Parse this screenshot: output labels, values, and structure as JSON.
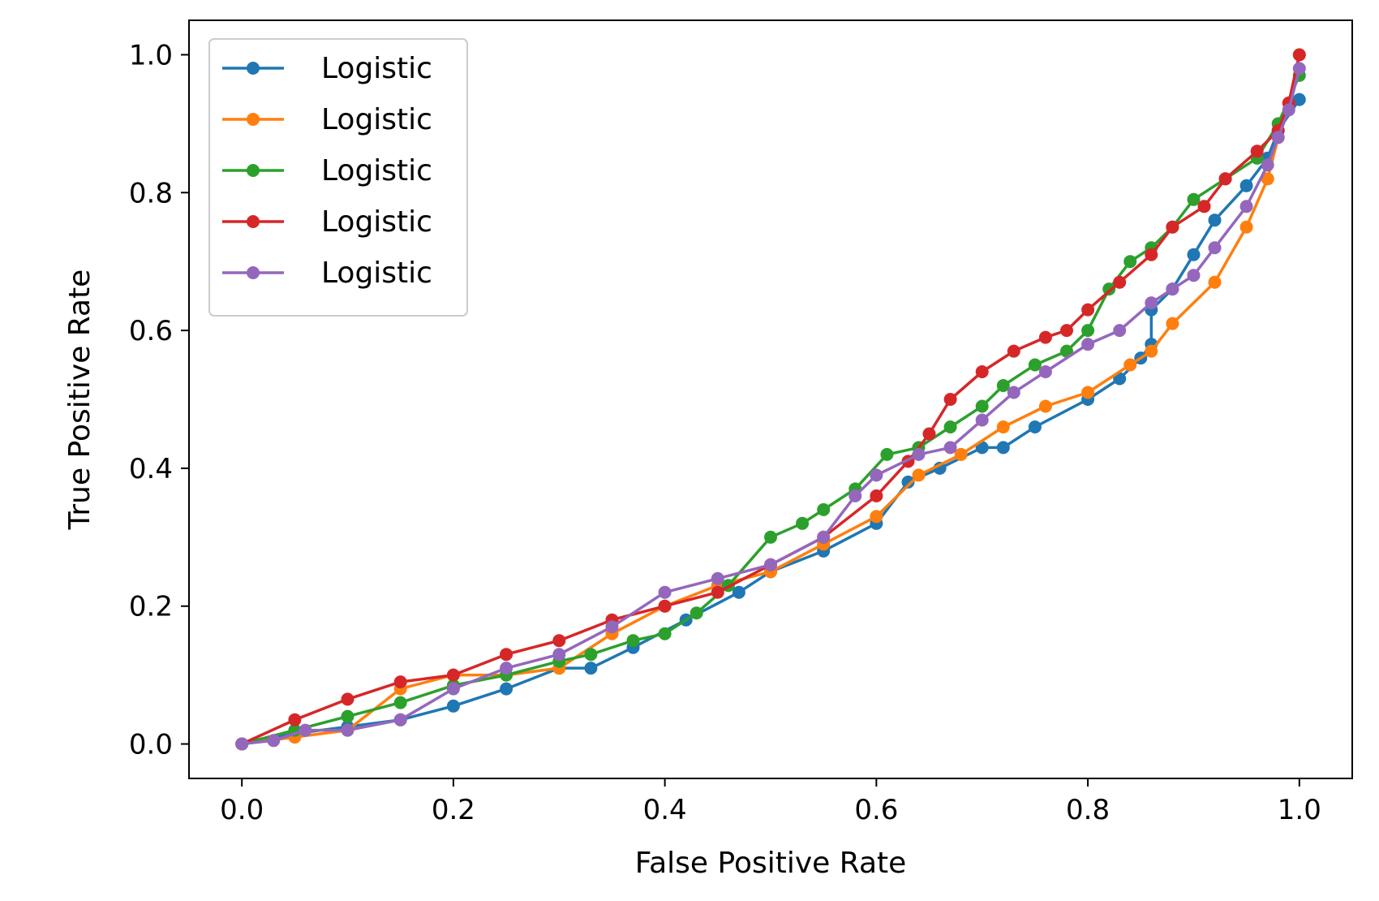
{
  "chart_data": {
    "type": "line",
    "title": "",
    "xlabel": "False Positive Rate",
    "ylabel": "True Positive Rate",
    "xlim": [
      -0.05,
      1.05
    ],
    "ylim": [
      -0.05,
      1.05
    ],
    "xticks": [
      "0.0",
      "0.2",
      "0.4",
      "0.6",
      "0.8",
      "1.0"
    ],
    "yticks": [
      "0.0",
      "0.2",
      "0.4",
      "0.6",
      "0.8",
      "1.0"
    ],
    "grid": false,
    "legend_position": "top-left",
    "markers": true,
    "series": [
      {
        "name": "Logistic",
        "color": "#1f77b4",
        "points": [
          [
            0,
            0
          ],
          [
            0.05,
            0.015
          ],
          [
            0.1,
            0.025
          ],
          [
            0.15,
            0.035
          ],
          [
            0.2,
            0.055
          ],
          [
            0.25,
            0.08
          ],
          [
            0.3,
            0.11
          ],
          [
            0.33,
            0.11
          ],
          [
            0.37,
            0.14
          ],
          [
            0.42,
            0.18
          ],
          [
            0.47,
            0.22
          ],
          [
            0.5,
            0.25
          ],
          [
            0.55,
            0.28
          ],
          [
            0.6,
            0.32
          ],
          [
            0.63,
            0.38
          ],
          [
            0.66,
            0.4
          ],
          [
            0.7,
            0.43
          ],
          [
            0.72,
            0.43
          ],
          [
            0.75,
            0.46
          ],
          [
            0.8,
            0.5
          ],
          [
            0.83,
            0.53
          ],
          [
            0.85,
            0.56
          ],
          [
            0.86,
            0.58
          ],
          [
            0.86,
            0.63
          ],
          [
            0.88,
            0.66
          ],
          [
            0.9,
            0.71
          ],
          [
            0.92,
            0.76
          ],
          [
            0.95,
            0.81
          ],
          [
            0.97,
            0.85
          ],
          [
            0.98,
            0.89
          ],
          [
            1.0,
            0.935
          ]
        ]
      },
      {
        "name": "Logistic",
        "color": "#ff7f0e",
        "points": [
          [
            0,
            0
          ],
          [
            0.05,
            0.01
          ],
          [
            0.1,
            0.02
          ],
          [
            0.15,
            0.08
          ],
          [
            0.2,
            0.1
          ],
          [
            0.25,
            0.1
          ],
          [
            0.3,
            0.11
          ],
          [
            0.35,
            0.16
          ],
          [
            0.4,
            0.2
          ],
          [
            0.45,
            0.23
          ],
          [
            0.5,
            0.25
          ],
          [
            0.55,
            0.29
          ],
          [
            0.6,
            0.33
          ],
          [
            0.64,
            0.39
          ],
          [
            0.68,
            0.42
          ],
          [
            0.72,
            0.46
          ],
          [
            0.76,
            0.49
          ],
          [
            0.8,
            0.51
          ],
          [
            0.84,
            0.55
          ],
          [
            0.86,
            0.57
          ],
          [
            0.88,
            0.61
          ],
          [
            0.92,
            0.67
          ],
          [
            0.95,
            0.75
          ],
          [
            0.97,
            0.82
          ],
          [
            0.98,
            0.88
          ],
          [
            0.99,
            0.93
          ],
          [
            1.0,
            1.0
          ]
        ]
      },
      {
        "name": "Logistic",
        "color": "#2ca02c",
        "points": [
          [
            0,
            0
          ],
          [
            0.05,
            0.02
          ],
          [
            0.1,
            0.04
          ],
          [
            0.15,
            0.06
          ],
          [
            0.2,
            0.085
          ],
          [
            0.25,
            0.1
          ],
          [
            0.3,
            0.12
          ],
          [
            0.33,
            0.13
          ],
          [
            0.37,
            0.15
          ],
          [
            0.4,
            0.16
          ],
          [
            0.43,
            0.19
          ],
          [
            0.46,
            0.23
          ],
          [
            0.5,
            0.3
          ],
          [
            0.53,
            0.32
          ],
          [
            0.55,
            0.34
          ],
          [
            0.58,
            0.37
          ],
          [
            0.61,
            0.42
          ],
          [
            0.64,
            0.43
          ],
          [
            0.67,
            0.46
          ],
          [
            0.7,
            0.49
          ],
          [
            0.72,
            0.52
          ],
          [
            0.75,
            0.55
          ],
          [
            0.78,
            0.57
          ],
          [
            0.8,
            0.6
          ],
          [
            0.82,
            0.66
          ],
          [
            0.84,
            0.7
          ],
          [
            0.86,
            0.72
          ],
          [
            0.88,
            0.75
          ],
          [
            0.9,
            0.79
          ],
          [
            0.93,
            0.82
          ],
          [
            0.96,
            0.85
          ],
          [
            0.98,
            0.9
          ],
          [
            1.0,
            0.97
          ]
        ]
      },
      {
        "name": "Logistic",
        "color": "#d62728",
        "points": [
          [
            0,
            0
          ],
          [
            0.05,
            0.035
          ],
          [
            0.1,
            0.065
          ],
          [
            0.15,
            0.09
          ],
          [
            0.2,
            0.1
          ],
          [
            0.25,
            0.13
          ],
          [
            0.3,
            0.15
          ],
          [
            0.35,
            0.18
          ],
          [
            0.4,
            0.2
          ],
          [
            0.45,
            0.22
          ],
          [
            0.5,
            0.26
          ],
          [
            0.55,
            0.3
          ],
          [
            0.6,
            0.36
          ],
          [
            0.63,
            0.41
          ],
          [
            0.65,
            0.45
          ],
          [
            0.67,
            0.5
          ],
          [
            0.7,
            0.54
          ],
          [
            0.73,
            0.57
          ],
          [
            0.76,
            0.59
          ],
          [
            0.78,
            0.6
          ],
          [
            0.8,
            0.63
          ],
          [
            0.83,
            0.67
          ],
          [
            0.86,
            0.71
          ],
          [
            0.88,
            0.75
          ],
          [
            0.91,
            0.78
          ],
          [
            0.93,
            0.82
          ],
          [
            0.96,
            0.86
          ],
          [
            0.98,
            0.89
          ],
          [
            0.99,
            0.93
          ],
          [
            1.0,
            1.0
          ]
        ]
      },
      {
        "name": "Logistic",
        "color": "#9467bd",
        "points": [
          [
            0,
            0
          ],
          [
            0.03,
            0.005
          ],
          [
            0.06,
            0.02
          ],
          [
            0.1,
            0.02
          ],
          [
            0.15,
            0.035
          ],
          [
            0.2,
            0.08
          ],
          [
            0.25,
            0.11
          ],
          [
            0.3,
            0.13
          ],
          [
            0.35,
            0.17
          ],
          [
            0.4,
            0.22
          ],
          [
            0.45,
            0.24
          ],
          [
            0.5,
            0.26
          ],
          [
            0.55,
            0.3
          ],
          [
            0.58,
            0.36
          ],
          [
            0.6,
            0.39
          ],
          [
            0.64,
            0.42
          ],
          [
            0.67,
            0.43
          ],
          [
            0.7,
            0.47
          ],
          [
            0.73,
            0.51
          ],
          [
            0.76,
            0.54
          ],
          [
            0.8,
            0.58
          ],
          [
            0.83,
            0.6
          ],
          [
            0.86,
            0.64
          ],
          [
            0.88,
            0.66
          ],
          [
            0.9,
            0.68
          ],
          [
            0.92,
            0.72
          ],
          [
            0.95,
            0.78
          ],
          [
            0.97,
            0.84
          ],
          [
            0.98,
            0.88
          ],
          [
            0.99,
            0.92
          ],
          [
            1.0,
            0.98
          ]
        ]
      }
    ]
  }
}
